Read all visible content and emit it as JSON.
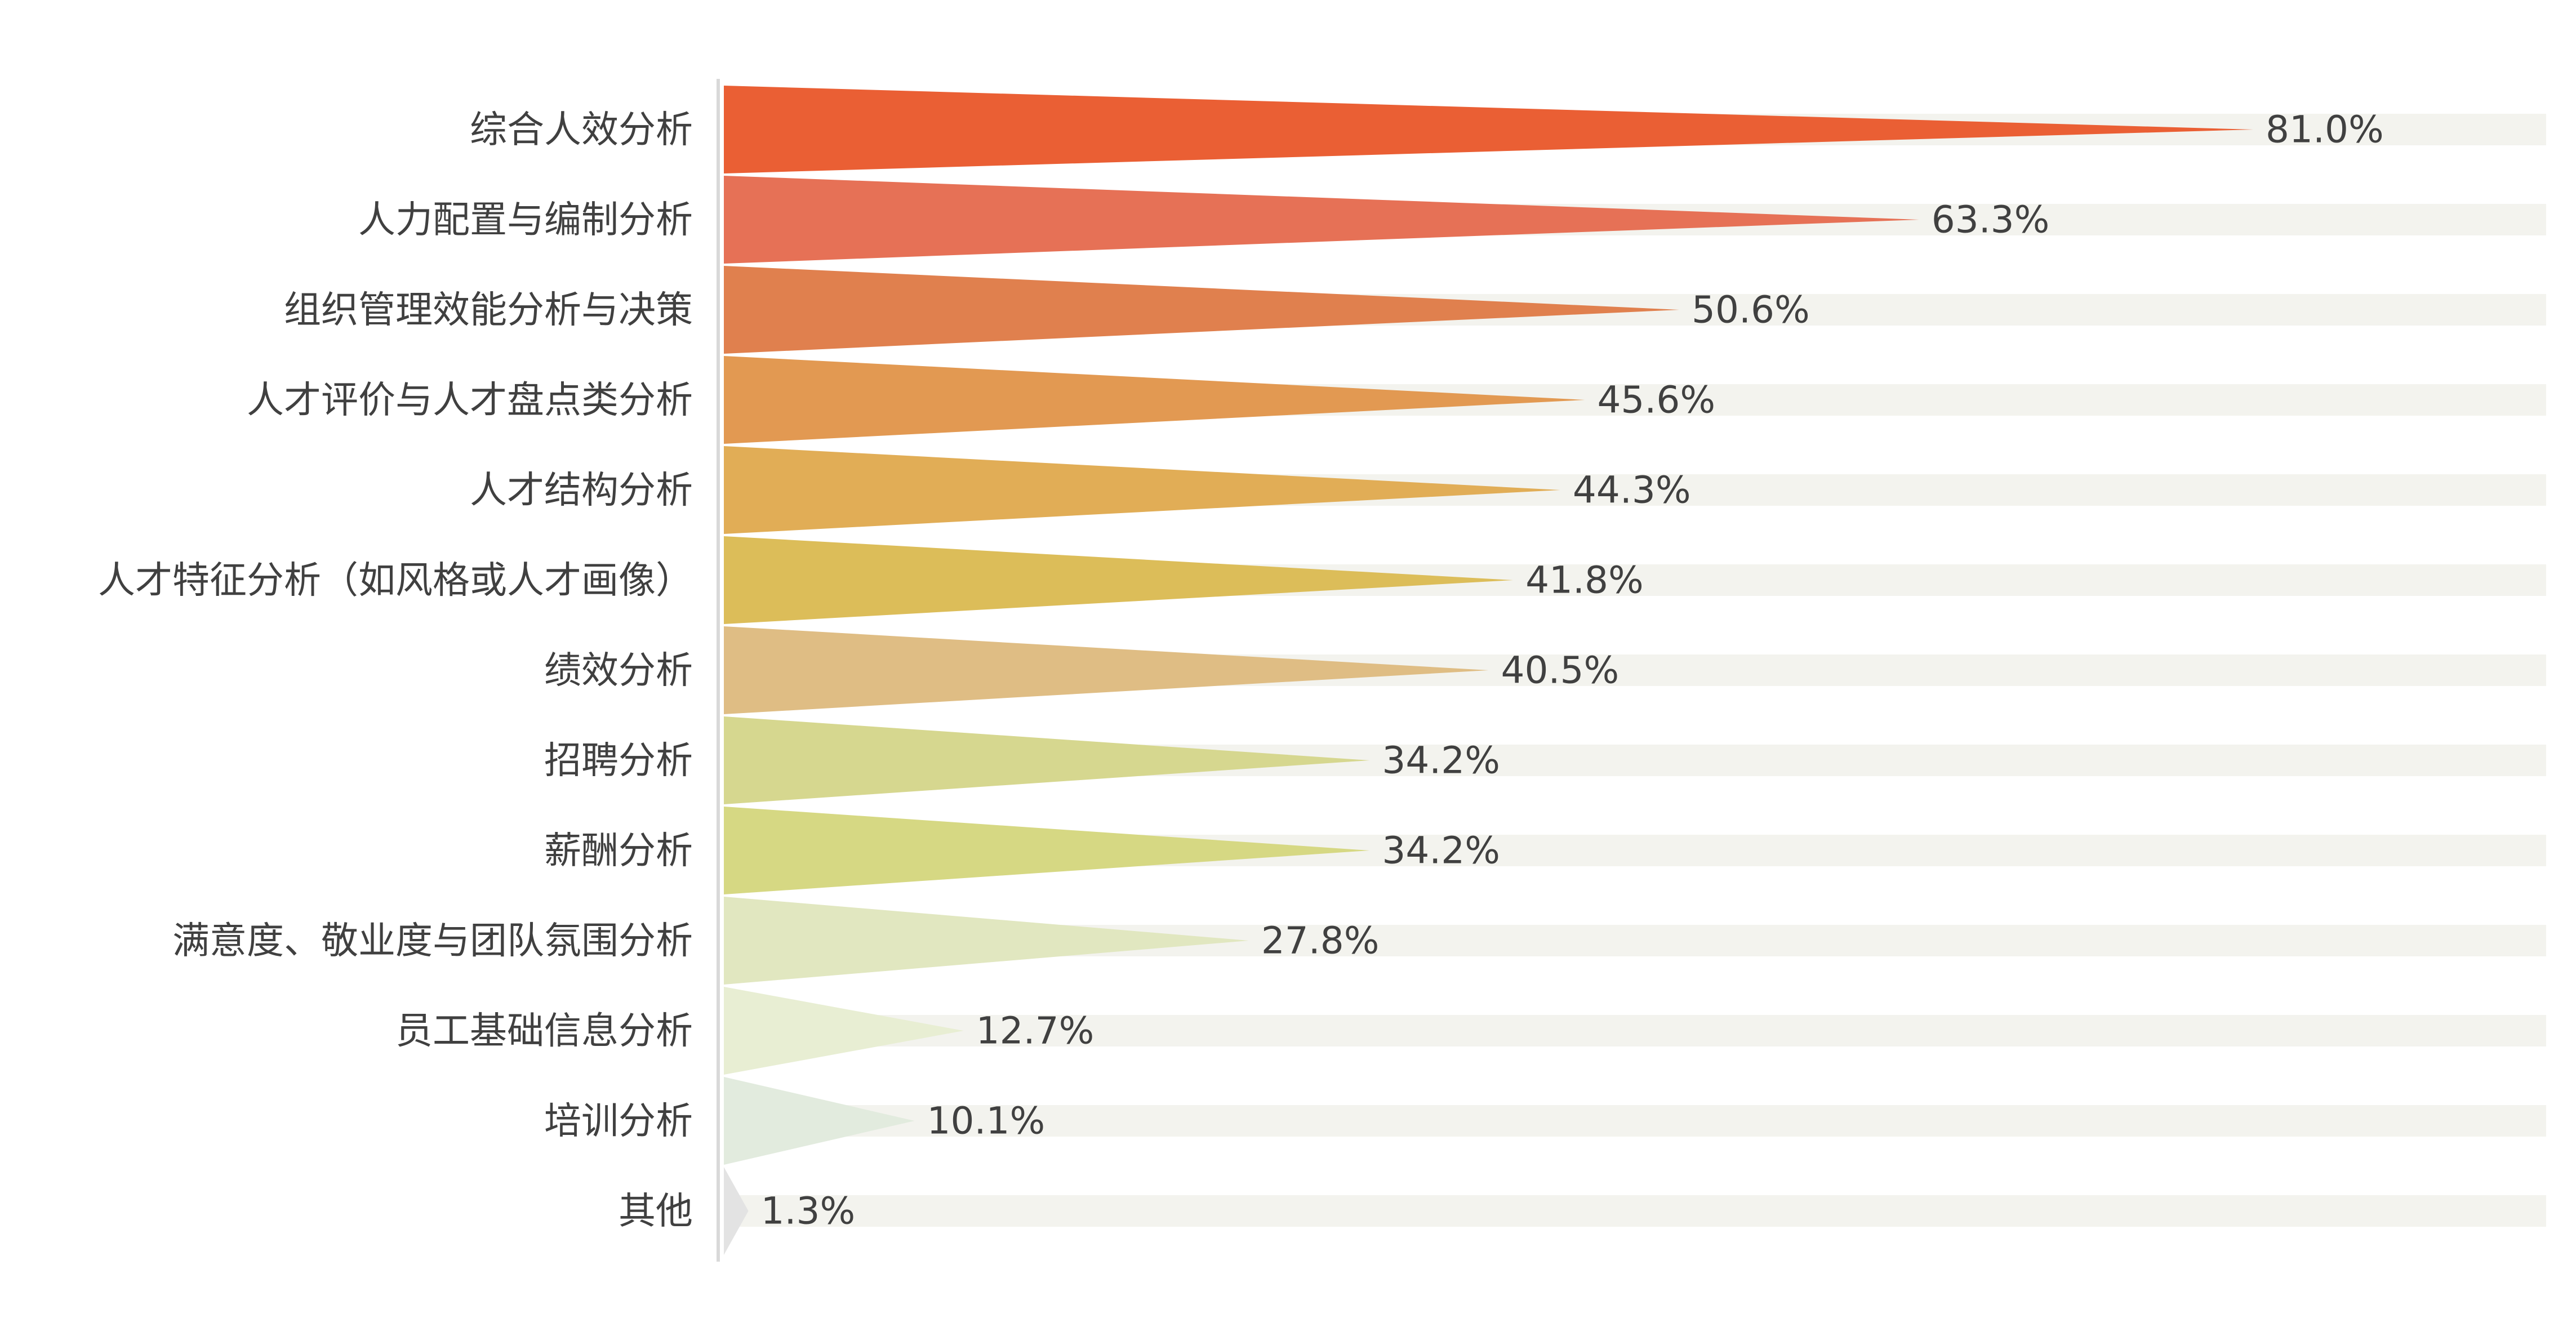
{
  "chart_data": {
    "type": "bar",
    "categories": [
      "综合人效分析",
      "人力配置与编制分析",
      "组织管理效能分析与决策",
      "人才评价与人才盘点类分析",
      "人才结构分析",
      "人才特征分析（如风格或人才画像）",
      "绩效分析",
      "招聘分析",
      "薪酬分析",
      "满意度、敬业度与团队氛围分析",
      "员工基础信息分析",
      "培训分析",
      "其他"
    ],
    "values": [
      81.0,
      63.3,
      50.6,
      45.6,
      44.3,
      41.8,
      40.5,
      34.2,
      34.2,
      27.8,
      12.7,
      10.1,
      1.3
    ],
    "value_labels": [
      "81.0%",
      "63.3%",
      "50.6%",
      "45.6%",
      "44.3%",
      "41.8%",
      "40.5%",
      "34.2%",
      "34.2%",
      "27.8%",
      "12.7%",
      "10.1%",
      "1.3%"
    ],
    "value_unit": "%",
    "xlim": [
      0,
      100
    ],
    "orientation": "horizontal",
    "mark_shape": "triangle",
    "background_track": true,
    "grid": false,
    "legend": "none",
    "colors": [
      "#EA5F34",
      "#E67156",
      "#E0804E",
      "#E29952",
      "#E1AD56",
      "#DCBD59",
      "#DFBD84",
      "#D6D78F",
      "#D6D883",
      "#E1E7C0",
      "#E8EED3",
      "#E2EBDE",
      "#E3E3E3"
    ],
    "track_color": "#F3F3EE",
    "axis_color": "#D9D9D9",
    "label_color": "#404040"
  }
}
